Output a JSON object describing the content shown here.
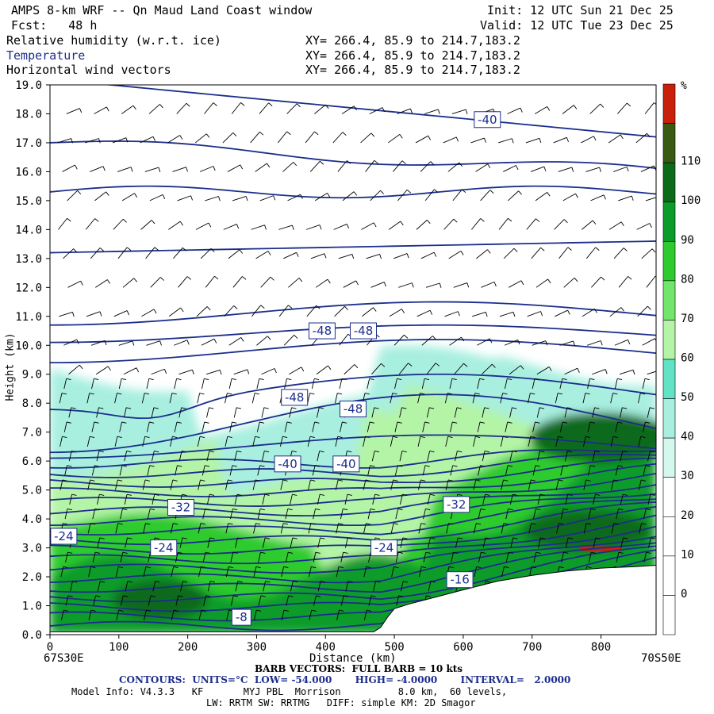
{
  "header": {
    "title": "AMPS 8-km WRF -- Qn Maud Land Coast window",
    "init": "Init: 12 UTC Sun 21 Dec 25",
    "fcst": "Fcst:   48 h",
    "valid": "Valid: 12 UTC Tue 23 Dec 25",
    "fields": [
      {
        "name": "Relative humidity (w.r.t. ice)",
        "xy": "XY= 266.4, 85.9 to 214.7,183.2"
      },
      {
        "name": "Temperature",
        "xy": "XY= 266.4, 85.9 to 214.7,183.2"
      },
      {
        "name": "Horizontal wind vectors",
        "xy": "XY= 266.4, 85.9 to 214.7,183.2"
      }
    ]
  },
  "axes": {
    "ylabel": "Height (km)",
    "xlabel": "Distance (km)",
    "left_coord": "67S30E",
    "right_coord": "70S50E"
  },
  "colorbar": {
    "unit": "%",
    "labels": [
      "0",
      "10",
      "20",
      "30",
      "40",
      "50",
      "60",
      "70",
      "80",
      "90",
      "100",
      "110"
    ],
    "colors": [
      "#ffffff",
      "#ffffff",
      "#ffffff",
      "#ffffff",
      "#d4f7ee",
      "#a8efe0",
      "#62e3c6",
      "#b4f4a6",
      "#72e66c",
      "#2ecb2e",
      "#0c9c2c",
      "#0d6a1a",
      "#3a5a14",
      "#c8200a"
    ]
  },
  "footer": {
    "barb": "BARB VECTORS:  FULL BARB = 10 kts",
    "contours": "CONTOURS:  UNITS=°C  LOW= -54.000       HIGH= -4.0000       INTERVAL=   2.0000",
    "model_info": "Model Info: V4.3.3   KF       MYJ PBL  Morrison          8.0 km,  60 levels,",
    "model_info2": "LW: RRTM SW: RRTMG   DIFF: simple KM: 2D Smagor"
  },
  "chart_data": {
    "type": "cross-section",
    "x": {
      "label": "Distance (km)",
      "range": [
        0,
        880
      ],
      "ticks": [
        0,
        100,
        200,
        300,
        400,
        500,
        600,
        700,
        800
      ]
    },
    "y": {
      "label": "Height (km)",
      "range": [
        0,
        19
      ],
      "ticks": [
        0,
        1,
        2,
        3,
        4,
        5,
        6,
        7,
        8,
        9,
        10,
        11,
        12,
        13,
        14,
        15,
        16,
        17,
        18,
        19
      ]
    },
    "terrain": {
      "x": [
        0,
        470,
        480,
        490,
        500,
        520,
        560,
        600,
        650,
        700,
        750,
        800,
        850,
        880
      ],
      "height": [
        0.1,
        0.1,
        0.25,
        0.6,
        0.9,
        1.05,
        1.3,
        1.55,
        1.85,
        2.05,
        2.2,
        2.3,
        2.35,
        2.4
      ]
    },
    "temperature_contours": {
      "units": "°C",
      "low": -54,
      "high": -4,
      "interval": 2,
      "labels": [
        {
          "text": "-40",
          "x": 635,
          "height": 17.8
        },
        {
          "text": "-48",
          "x": 395,
          "height": 10.5
        },
        {
          "text": "-48",
          "x": 455,
          "height": 10.5
        },
        {
          "text": "-48",
          "x": 355,
          "height": 8.2
        },
        {
          "text": "-48",
          "x": 440,
          "height": 7.8
        },
        {
          "text": "-40",
          "x": 345,
          "height": 5.9
        },
        {
          "text": "-40",
          "x": 430,
          "height": 5.9
        },
        {
          "text": "-32",
          "x": 190,
          "height": 4.4
        },
        {
          "text": "-32",
          "x": 590,
          "height": 4.5
        },
        {
          "text": "-24",
          "x": 20,
          "height": 3.4
        },
        {
          "text": "-24",
          "x": 165,
          "height": 3.0
        },
        {
          "text": "-24",
          "x": 485,
          "height": 3.0
        },
        {
          "text": "-16",
          "x": 595,
          "height": 1.9
        },
        {
          "text": "-8",
          "x": 278,
          "height": 0.6
        }
      ]
    },
    "humidity_regions_pct": [
      {
        "level": 30,
        "desc": "moist layer",
        "x": [
          0,
          880
        ],
        "height": [
          2.5,
          9.5
        ]
      },
      {
        "level": 60,
        "x": [
          0,
          880
        ],
        "height": [
          0,
          6.5
        ]
      },
      {
        "level": 90,
        "x": [
          0,
          880
        ],
        "height": [
          0,
          3.5
        ]
      },
      {
        "level": 100,
        "x": [
          690,
          880
        ],
        "height": [
          6.0,
          7.6
        ]
      },
      {
        "level": 110,
        "x": [
          770,
          830
        ],
        "height": [
          2.8,
          3.1
        ]
      }
    ]
  }
}
